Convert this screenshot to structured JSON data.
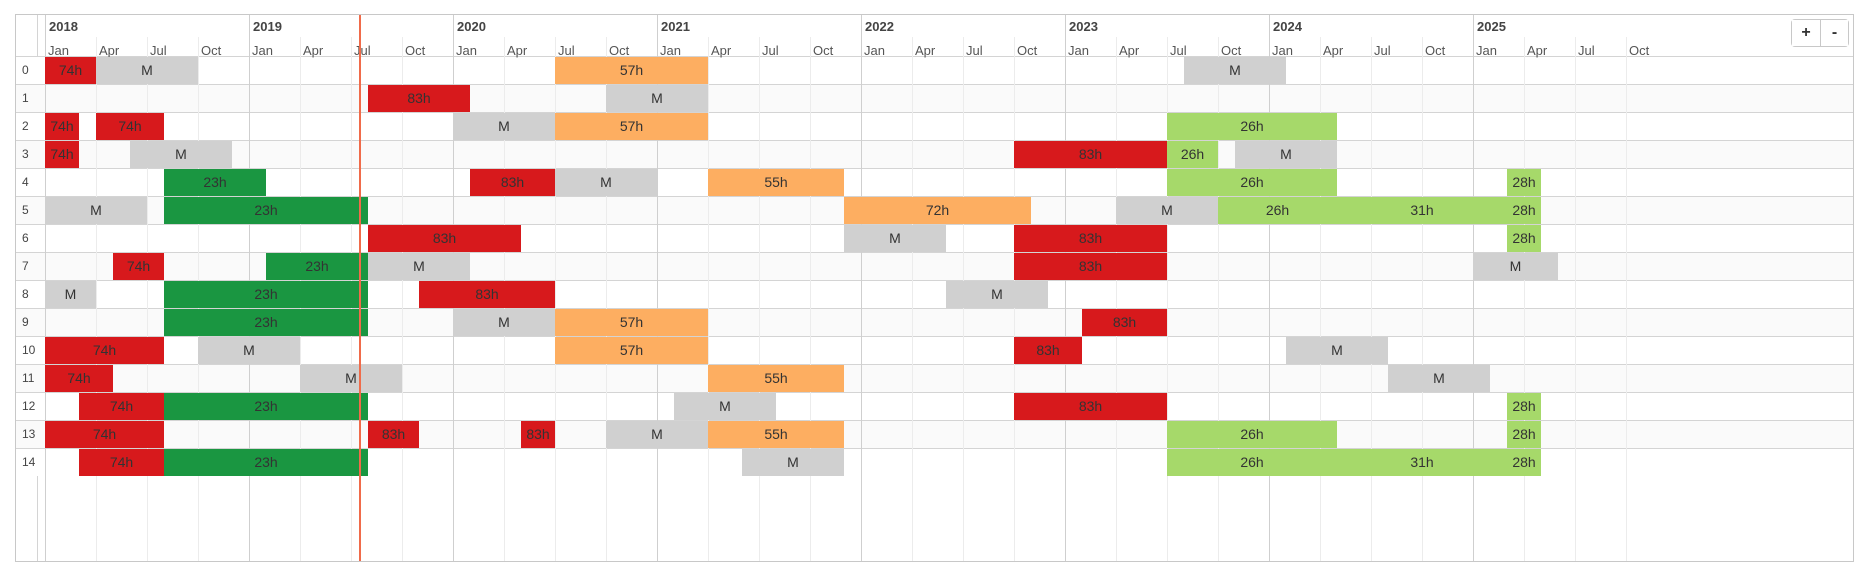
{
  "timeline": {
    "start": "2018-01",
    "years": [
      "2018",
      "2019",
      "2020",
      "2021",
      "2022",
      "2023",
      "2024",
      "2025"
    ],
    "month_labels": [
      "Jan",
      "Apr",
      "Jul",
      "Oct"
    ],
    "current_time": "2019-07-15",
    "zoom": {
      "in_label": "+",
      "out_label": "-"
    },
    "colors": {
      "74h": "#d7191c",
      "83h": "#d7191c",
      "M": "#d0d0d0",
      "57h": "#fdae61",
      "55h": "#fdae61",
      "72h": "#fdae61",
      "23h": "#1a9641",
      "26h": "#a6d96a",
      "31h": "#a6d96a",
      "28h": "#a6d96a"
    },
    "lanes": [
      {
        "label": "0",
        "items": [
          [
            "2018-01-01",
            "2018-04-01",
            "74h"
          ],
          [
            "2018-04-01",
            "2018-10-01",
            "M"
          ],
          [
            "2020-07-01",
            "2021-04-01",
            "57h"
          ],
          [
            "2023-08-01",
            "2024-02-01",
            "M"
          ]
        ]
      },
      {
        "label": "1",
        "items": [
          [
            "2019-08-01",
            "2020-02-01",
            "83h"
          ],
          [
            "2020-10-01",
            "2021-04-01",
            "M"
          ]
        ]
      },
      {
        "label": "2",
        "items": [
          [
            "2018-01-01",
            "2018-03-01",
            "74h"
          ],
          [
            "2018-04-01",
            "2018-08-01",
            "74h"
          ],
          [
            "2020-01-01",
            "2020-07-01",
            "M"
          ],
          [
            "2020-07-01",
            "2021-04-01",
            "57h"
          ],
          [
            "2023-07-01",
            "2024-05-01",
            "26h"
          ]
        ]
      },
      {
        "label": "3",
        "items": [
          [
            "2018-01-01",
            "2018-03-01",
            "74h"
          ],
          [
            "2018-06-01",
            "2018-12-01",
            "M"
          ],
          [
            "2022-10-01",
            "2023-07-01",
            "83h"
          ],
          [
            "2023-07-01",
            "2023-10-01",
            "26h"
          ],
          [
            "2023-11-01",
            "2024-05-01",
            "M"
          ]
        ]
      },
      {
        "label": "4",
        "items": [
          [
            "2018-08-01",
            "2019-02-01",
            "23h"
          ],
          [
            "2020-02-01",
            "2020-07-01",
            "83h"
          ],
          [
            "2020-07-01",
            "2021-01-01",
            "M"
          ],
          [
            "2021-04-01",
            "2021-12-01",
            "55h"
          ],
          [
            "2023-07-01",
            "2024-05-01",
            "26h"
          ],
          [
            "2025-03-01",
            "2025-05-01",
            "28h"
          ]
        ]
      },
      {
        "label": "5",
        "items": [
          [
            "2018-01-01",
            "2018-07-01",
            "M"
          ],
          [
            "2018-08-01",
            "2019-08-01",
            "23h"
          ],
          [
            "2021-12-01",
            "2022-11-01",
            "72h"
          ],
          [
            "2023-04-01",
            "2023-10-01",
            "M"
          ],
          [
            "2023-10-01",
            "2024-05-01",
            "26h"
          ],
          [
            "2024-05-01",
            "2025-03-01",
            "31h"
          ],
          [
            "2025-03-01",
            "2025-05-01",
            "28h"
          ]
        ]
      },
      {
        "label": "6",
        "items": [
          [
            "2019-08-01",
            "2020-05-01",
            "83h"
          ],
          [
            "2021-12-01",
            "2022-06-01",
            "M"
          ],
          [
            "2022-10-01",
            "2023-07-01",
            "83h"
          ],
          [
            "2025-03-01",
            "2025-05-01",
            "28h"
          ]
        ]
      },
      {
        "label": "7",
        "items": [
          [
            "2018-05-01",
            "2018-08-01",
            "74h"
          ],
          [
            "2019-02-01",
            "2019-08-01",
            "23h"
          ],
          [
            "2019-08-01",
            "2020-02-01",
            "M"
          ],
          [
            "2022-10-01",
            "2023-07-01",
            "83h"
          ],
          [
            "2025-01-01",
            "2025-06-01",
            "M"
          ]
        ]
      },
      {
        "label": "8",
        "items": [
          [
            "2018-01-01",
            "2018-04-01",
            "M"
          ],
          [
            "2018-08-01",
            "2019-08-01",
            "23h"
          ],
          [
            "2019-11-01",
            "2020-07-01",
            "83h"
          ],
          [
            "2022-06-01",
            "2022-12-01",
            "M"
          ]
        ]
      },
      {
        "label": "9",
        "items": [
          [
            "2018-08-01",
            "2019-08-01",
            "23h"
          ],
          [
            "2020-01-01",
            "2020-07-01",
            "M"
          ],
          [
            "2020-07-01",
            "2021-04-01",
            "57h"
          ],
          [
            "2023-02-01",
            "2023-07-01",
            "83h"
          ]
        ]
      },
      {
        "label": "10",
        "items": [
          [
            "2018-01-01",
            "2018-08-01",
            "74h"
          ],
          [
            "2018-10-01",
            "2019-04-01",
            "M"
          ],
          [
            "2020-07-01",
            "2021-04-01",
            "57h"
          ],
          [
            "2022-10-01",
            "2023-02-01",
            "83h"
          ],
          [
            "2024-02-01",
            "2024-08-01",
            "M"
          ]
        ]
      },
      {
        "label": "11",
        "items": [
          [
            "2018-01-01",
            "2018-05-01",
            "74h"
          ],
          [
            "2019-04-01",
            "2019-10-01",
            "M"
          ],
          [
            "2021-04-01",
            "2021-12-01",
            "55h"
          ],
          [
            "2024-08-01",
            "2025-02-01",
            "M"
          ]
        ]
      },
      {
        "label": "12",
        "items": [
          [
            "2018-03-01",
            "2018-08-01",
            "74h"
          ],
          [
            "2018-08-01",
            "2019-08-01",
            "23h"
          ],
          [
            "2021-02-01",
            "2021-08-01",
            "M"
          ],
          [
            "2022-10-01",
            "2023-07-01",
            "83h"
          ],
          [
            "2025-03-01",
            "2025-05-01",
            "28h"
          ]
        ]
      },
      {
        "label": "13",
        "items": [
          [
            "2018-01-01",
            "2018-08-01",
            "74h"
          ],
          [
            "2019-08-01",
            "2019-11-01",
            "83h"
          ],
          [
            "2020-05-01",
            "2020-07-01",
            "83h"
          ],
          [
            "2020-10-01",
            "2021-04-01",
            "M"
          ],
          [
            "2021-04-01",
            "2021-12-01",
            "55h"
          ],
          [
            "2023-07-01",
            "2024-05-01",
            "26h"
          ],
          [
            "2025-03-01",
            "2025-05-01",
            "28h"
          ]
        ]
      },
      {
        "label": "14",
        "items": [
          [
            "2018-03-01",
            "2018-08-01",
            "74h"
          ],
          [
            "2018-08-01",
            "2019-08-01",
            "23h"
          ],
          [
            "2021-06-01",
            "2021-12-01",
            "M"
          ],
          [
            "2023-07-01",
            "2024-05-01",
            "26h"
          ],
          [
            "2024-05-01",
            "2025-03-01",
            "31h"
          ],
          [
            "2025-03-01",
            "2025-05-01",
            "28h"
          ]
        ]
      }
    ]
  }
}
